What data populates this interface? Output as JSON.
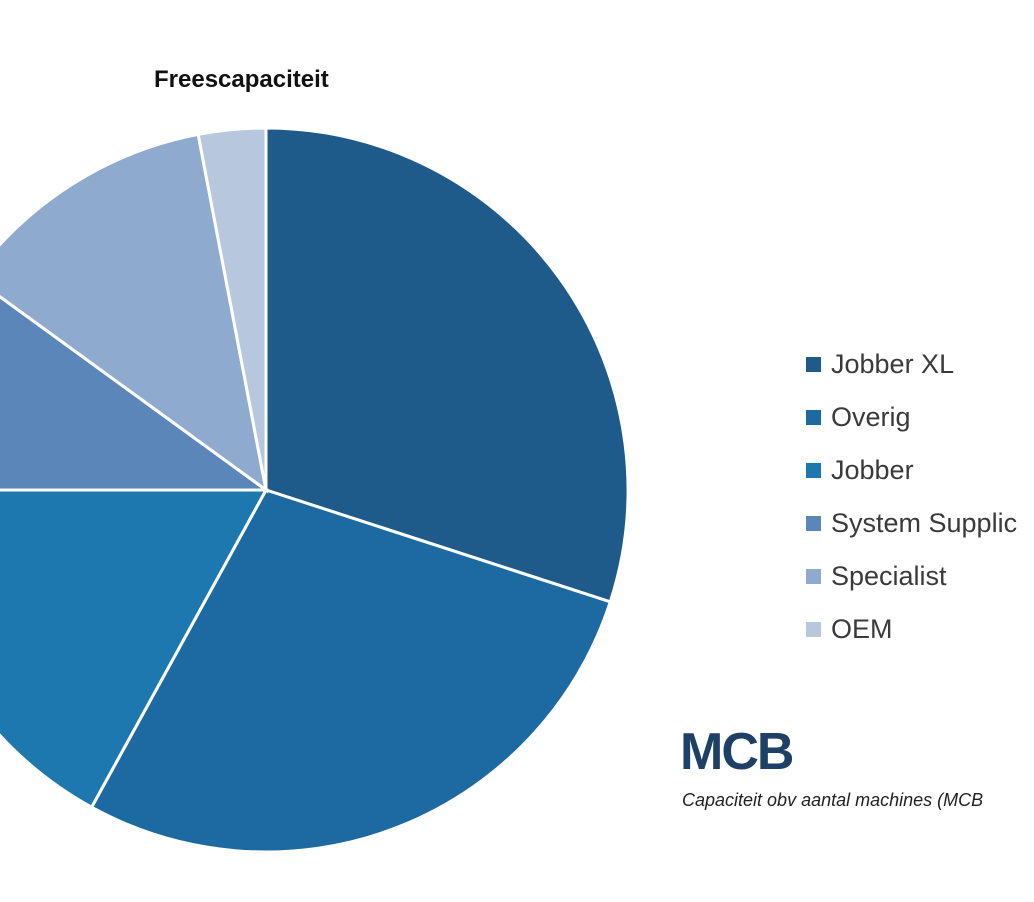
{
  "chart_data": {
    "type": "pie",
    "title": "Freescapaciteit",
    "categories": [
      "Jobber XL",
      "Overig",
      "Jobber",
      "System Supplier",
      "Specialist",
      "OEM"
    ],
    "values": [
      30,
      28,
      17,
      10,
      12,
      3
    ],
    "colors": [
      "#1f5b8a",
      "#1c6aa1",
      "#1e78b0",
      "#5a86ba",
      "#8eabcf",
      "#b6c7de"
    ],
    "legend_visible_labels": [
      "Jobber XL",
      "Overig",
      "Jobber",
      "System Supplic",
      "Specialist",
      "OEM"
    ],
    "legend_position": "right"
  },
  "logo": {
    "text": "MCB"
  },
  "source_note": "Capaciteit obv aantal machines (MCB"
}
